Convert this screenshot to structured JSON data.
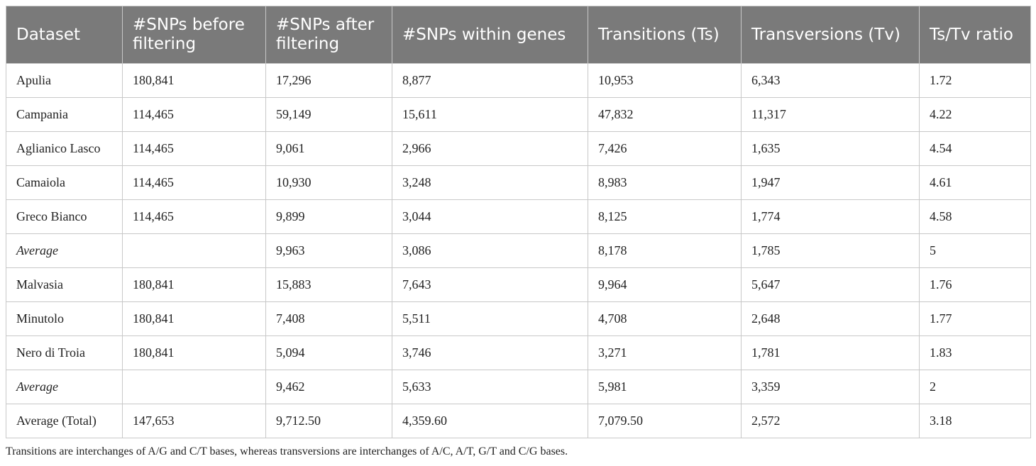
{
  "table": {
    "headers": [
      "Dataset",
      "#SNPs before filtering",
      "#SNPs after filtering",
      "#SNPs within genes",
      "Transitions (Ts)",
      "Transversions (Tv)",
      "Ts/Tv ratio"
    ],
    "rows": [
      {
        "cells": [
          "Apulia",
          "180,841",
          "17,296",
          "8,877",
          "10,953",
          "6,343",
          "1.72"
        ],
        "italic": false
      },
      {
        "cells": [
          "Campania",
          "114,465",
          "59,149",
          "15,611",
          "47,832",
          "11,317",
          "4.22"
        ],
        "italic": false
      },
      {
        "cells": [
          "Aglianico Lasco",
          "114,465",
          "9,061",
          "2,966",
          "7,426",
          "1,635",
          "4.54"
        ],
        "italic": false
      },
      {
        "cells": [
          "Camaiola",
          "114,465",
          "10,930",
          "3,248",
          "8,983",
          "1,947",
          "4.61"
        ],
        "italic": false
      },
      {
        "cells": [
          "Greco Bianco",
          "114,465",
          "9,899",
          "3,044",
          "8,125",
          "1,774",
          "4.58"
        ],
        "italic": false
      },
      {
        "cells": [
          "Average",
          "",
          "9,963",
          "3,086",
          "8,178",
          "1,785",
          "5"
        ],
        "italic": true
      },
      {
        "cells": [
          "Malvasia",
          "180,841",
          "15,883",
          "7,643",
          "9,964",
          "5,647",
          "1.76"
        ],
        "italic": false
      },
      {
        "cells": [
          "Minutolo",
          "180,841",
          "7,408",
          "5,511",
          "4,708",
          "2,648",
          "1.77"
        ],
        "italic": false
      },
      {
        "cells": [
          "Nero di Troia",
          "180,841",
          "5,094",
          "3,746",
          "3,271",
          "1,781",
          "1.83"
        ],
        "italic": false
      },
      {
        "cells": [
          "Average",
          "",
          "9,462",
          "5,633",
          "5,981",
          "3,359",
          "2"
        ],
        "italic": true
      },
      {
        "cells": [
          "Average (Total)",
          "147,653",
          "9,712.50",
          "4,359.60",
          "7,079.50",
          "2,572",
          "3.18"
        ],
        "italic": false
      }
    ]
  },
  "footnote": "Transitions are interchanges of A/G and C/T bases, whereas transversions are interchanges of A/C, A/T, G/T and C/G bases."
}
